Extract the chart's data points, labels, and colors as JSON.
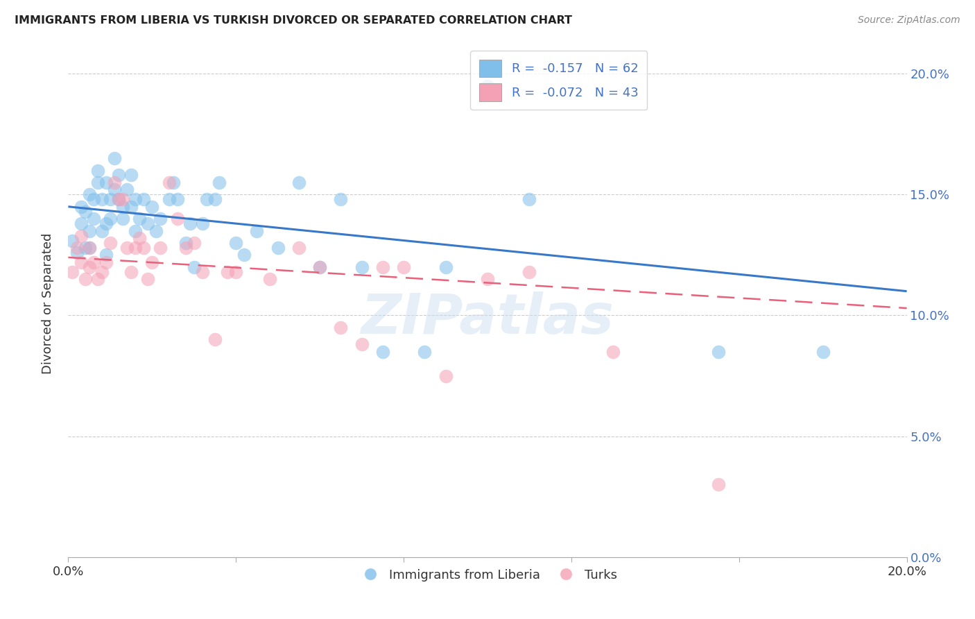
{
  "title": "IMMIGRANTS FROM LIBERIA VS TURKISH DIVORCED OR SEPARATED CORRELATION CHART",
  "source": "Source: ZipAtlas.com",
  "ylabel": "Divorced or Separated",
  "xmin": 0.0,
  "xmax": 0.2,
  "ymin": 0.0,
  "ymax": 0.21,
  "yticks": [
    0.0,
    0.05,
    0.1,
    0.15,
    0.2
  ],
  "blue_color": "#7fbfea",
  "pink_color": "#f4a0b5",
  "blue_line_color": "#3878c8",
  "pink_line_color": "#e8607a",
  "watermark": "ZIPatlas",
  "blue_scatter_x": [
    0.001,
    0.002,
    0.003,
    0.003,
    0.004,
    0.004,
    0.005,
    0.005,
    0.005,
    0.006,
    0.006,
    0.007,
    0.007,
    0.008,
    0.008,
    0.009,
    0.009,
    0.009,
    0.01,
    0.01,
    0.011,
    0.011,
    0.012,
    0.012,
    0.013,
    0.013,
    0.014,
    0.015,
    0.015,
    0.016,
    0.016,
    0.017,
    0.018,
    0.019,
    0.02,
    0.021,
    0.022,
    0.024,
    0.025,
    0.026,
    0.028,
    0.029,
    0.03,
    0.032,
    0.033,
    0.035,
    0.036,
    0.04,
    0.042,
    0.045,
    0.05,
    0.055,
    0.06,
    0.065,
    0.07,
    0.075,
    0.085,
    0.09,
    0.1,
    0.11,
    0.155,
    0.18
  ],
  "blue_scatter_y": [
    0.131,
    0.126,
    0.138,
    0.145,
    0.128,
    0.143,
    0.135,
    0.128,
    0.15,
    0.14,
    0.148,
    0.155,
    0.16,
    0.135,
    0.148,
    0.125,
    0.138,
    0.155,
    0.14,
    0.148,
    0.152,
    0.165,
    0.148,
    0.158,
    0.14,
    0.145,
    0.152,
    0.145,
    0.158,
    0.135,
    0.148,
    0.14,
    0.148,
    0.138,
    0.145,
    0.135,
    0.14,
    0.148,
    0.155,
    0.148,
    0.13,
    0.138,
    0.12,
    0.138,
    0.148,
    0.148,
    0.155,
    0.13,
    0.125,
    0.135,
    0.128,
    0.155,
    0.12,
    0.148,
    0.12,
    0.085,
    0.085,
    0.12,
    0.195,
    0.148,
    0.085,
    0.085
  ],
  "pink_scatter_x": [
    0.001,
    0.002,
    0.003,
    0.003,
    0.004,
    0.005,
    0.005,
    0.006,
    0.007,
    0.008,
    0.009,
    0.01,
    0.011,
    0.012,
    0.013,
    0.014,
    0.015,
    0.016,
    0.017,
    0.018,
    0.019,
    0.02,
    0.022,
    0.024,
    0.026,
    0.028,
    0.03,
    0.032,
    0.035,
    0.038,
    0.04,
    0.048,
    0.055,
    0.06,
    0.065,
    0.07,
    0.075,
    0.08,
    0.09,
    0.1,
    0.11,
    0.13,
    0.155
  ],
  "pink_scatter_y": [
    0.118,
    0.128,
    0.122,
    0.133,
    0.115,
    0.128,
    0.12,
    0.122,
    0.115,
    0.118,
    0.122,
    0.13,
    0.155,
    0.148,
    0.148,
    0.128,
    0.118,
    0.128,
    0.132,
    0.128,
    0.115,
    0.122,
    0.128,
    0.155,
    0.14,
    0.128,
    0.13,
    0.118,
    0.09,
    0.118,
    0.118,
    0.115,
    0.128,
    0.12,
    0.095,
    0.088,
    0.12,
    0.12,
    0.075,
    0.115,
    0.118,
    0.085,
    0.03
  ],
  "blue_line_x0": 0.0,
  "blue_line_y0": 0.145,
  "blue_line_x1": 0.2,
  "blue_line_y1": 0.11,
  "pink_line_x0": 0.0,
  "pink_line_y0": 0.124,
  "pink_line_x1": 0.2,
  "pink_line_y1": 0.103
}
